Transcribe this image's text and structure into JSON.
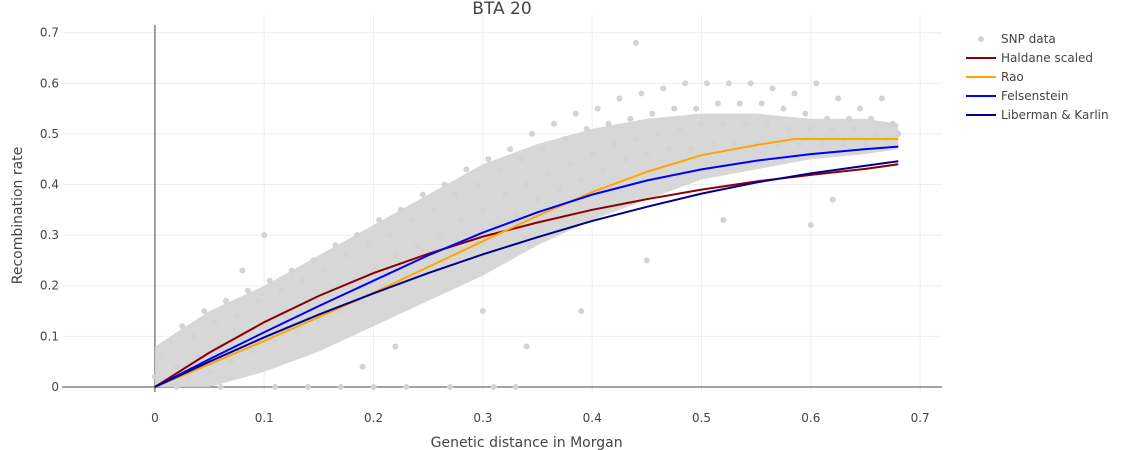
{
  "chart_data": {
    "type": "scatter",
    "title": "BTA 20",
    "xlabel": "Genetic distance in Morgan",
    "ylabel": "Recombination rate",
    "xlim": [
      -0.085,
      0.72
    ],
    "ylim": [
      -0.01,
      0.735
    ],
    "xticks": [
      0,
      0.1,
      0.2,
      0.3,
      0.4,
      0.5,
      0.6,
      0.7
    ],
    "xtick_labels": [
      "0",
      "0.1",
      "0.2",
      "0.3",
      "0.4",
      "0.5",
      "0.6",
      "0.7"
    ],
    "yticks": [
      0,
      0.1,
      0.2,
      0.3,
      0.4,
      0.5,
      0.6,
      0.7
    ],
    "ytick_labels": [
      "0",
      "0.1",
      "0.2",
      "0.3",
      "0.4",
      "0.5",
      "0.6",
      "0.7"
    ],
    "grid": true,
    "legend_position": "top-right",
    "series": [
      {
        "name": "SNP data",
        "kind": "markers",
        "color": "#d3d3d3",
        "points": [
          [
            0.0,
            0.02
          ],
          [
            0.005,
            0.06
          ],
          [
            0.01,
            0.01
          ],
          [
            0.015,
            0.09
          ],
          [
            0.02,
            0.04
          ],
          [
            0.025,
            0.12
          ],
          [
            0.03,
            0.02
          ],
          [
            0.035,
            0.1
          ],
          [
            0.04,
            0.06
          ],
          [
            0.045,
            0.15
          ],
          [
            0.05,
            0.03
          ],
          [
            0.055,
            0.13
          ],
          [
            0.06,
            0.08
          ],
          [
            0.065,
            0.17
          ],
          [
            0.07,
            0.05
          ],
          [
            0.075,
            0.14
          ],
          [
            0.08,
            0.1
          ],
          [
            0.085,
            0.19
          ],
          [
            0.09,
            0.07
          ],
          [
            0.095,
            0.17
          ],
          [
            0.1,
            0.12
          ],
          [
            0.1,
            0.3
          ],
          [
            0.105,
            0.21
          ],
          [
            0.11,
            0.09
          ],
          [
            0.115,
            0.19
          ],
          [
            0.12,
            0.14
          ],
          [
            0.125,
            0.23
          ],
          [
            0.13,
            0.11
          ],
          [
            0.135,
            0.21
          ],
          [
            0.14,
            0.16
          ],
          [
            0.145,
            0.25
          ],
          [
            0.15,
            0.13
          ],
          [
            0.155,
            0.23
          ],
          [
            0.16,
            0.18
          ],
          [
            0.165,
            0.28
          ],
          [
            0.17,
            0.15
          ],
          [
            0.175,
            0.26
          ],
          [
            0.18,
            0.21
          ],
          [
            0.185,
            0.3
          ],
          [
            0.19,
            0.17
          ],
          [
            0.195,
            0.28
          ],
          [
            0.2,
            0.23
          ],
          [
            0.205,
            0.33
          ],
          [
            0.21,
            0.2
          ],
          [
            0.215,
            0.3
          ],
          [
            0.22,
            0.26
          ],
          [
            0.225,
            0.35
          ],
          [
            0.23,
            0.22
          ],
          [
            0.235,
            0.33
          ],
          [
            0.24,
            0.28
          ],
          [
            0.245,
            0.38
          ],
          [
            0.25,
            0.24
          ],
          [
            0.255,
            0.35
          ],
          [
            0.26,
            0.3
          ],
          [
            0.265,
            0.4
          ],
          [
            0.27,
            0.27
          ],
          [
            0.275,
            0.38
          ],
          [
            0.28,
            0.33
          ],
          [
            0.285,
            0.43
          ],
          [
            0.29,
            0.29
          ],
          [
            0.295,
            0.4
          ],
          [
            0.3,
            0.35
          ],
          [
            0.305,
            0.45
          ],
          [
            0.31,
            0.32
          ],
          [
            0.315,
            0.43
          ],
          [
            0.32,
            0.38
          ],
          [
            0.325,
            0.47
          ],
          [
            0.33,
            0.34
          ],
          [
            0.335,
            0.45
          ],
          [
            0.34,
            0.4
          ],
          [
            0.345,
            0.5
          ],
          [
            0.35,
            0.37
          ],
          [
            0.355,
            0.47
          ],
          [
            0.36,
            0.42
          ],
          [
            0.365,
            0.52
          ],
          [
            0.37,
            0.39
          ],
          [
            0.375,
            0.49
          ],
          [
            0.38,
            0.44
          ],
          [
            0.385,
            0.54
          ],
          [
            0.39,
            0.41
          ],
          [
            0.395,
            0.51
          ],
          [
            0.4,
            0.46
          ],
          [
            0.405,
            0.55
          ],
          [
            0.41,
            0.43
          ],
          [
            0.415,
            0.52
          ],
          [
            0.42,
            0.48
          ],
          [
            0.425,
            0.57
          ],
          [
            0.43,
            0.45
          ],
          [
            0.435,
            0.53
          ],
          [
            0.44,
            0.49
          ],
          [
            0.44,
            0.68
          ],
          [
            0.445,
            0.58
          ],
          [
            0.45,
            0.46
          ],
          [
            0.455,
            0.54
          ],
          [
            0.46,
            0.5
          ],
          [
            0.465,
            0.59
          ],
          [
            0.47,
            0.47
          ],
          [
            0.475,
            0.55
          ],
          [
            0.48,
            0.51
          ],
          [
            0.485,
            0.6
          ],
          [
            0.49,
            0.47
          ],
          [
            0.495,
            0.55
          ],
          [
            0.5,
            0.52
          ],
          [
            0.505,
            0.6
          ],
          [
            0.51,
            0.48
          ],
          [
            0.515,
            0.56
          ],
          [
            0.52,
            0.52
          ],
          [
            0.525,
            0.6
          ],
          [
            0.53,
            0.48
          ],
          [
            0.535,
            0.56
          ],
          [
            0.54,
            0.52
          ],
          [
            0.545,
            0.6
          ],
          [
            0.55,
            0.48
          ],
          [
            0.555,
            0.56
          ],
          [
            0.56,
            0.52
          ],
          [
            0.565,
            0.59
          ],
          [
            0.57,
            0.48
          ],
          [
            0.575,
            0.55
          ],
          [
            0.58,
            0.51
          ],
          [
            0.585,
            0.58
          ],
          [
            0.59,
            0.48
          ],
          [
            0.595,
            0.54
          ],
          [
            0.6,
            0.51
          ],
          [
            0.605,
            0.6
          ],
          [
            0.61,
            0.48
          ],
          [
            0.615,
            0.53
          ],
          [
            0.62,
            0.51
          ],
          [
            0.625,
            0.57
          ],
          [
            0.63,
            0.48
          ],
          [
            0.635,
            0.53
          ],
          [
            0.64,
            0.51
          ],
          [
            0.645,
            0.55
          ],
          [
            0.65,
            0.48
          ],
          [
            0.655,
            0.53
          ],
          [
            0.66,
            0.5
          ],
          [
            0.665,
            0.57
          ],
          [
            0.67,
            0.49
          ],
          [
            0.675,
            0.52
          ],
          [
            0.68,
            0.5
          ],
          [
            0.02,
            0.0
          ],
          [
            0.06,
            0.0
          ],
          [
            0.11,
            0.0
          ],
          [
            0.14,
            0.0
          ],
          [
            0.17,
            0.0
          ],
          [
            0.2,
            0.0
          ],
          [
            0.23,
            0.0
          ],
          [
            0.27,
            0.0
          ],
          [
            0.31,
            0.0
          ],
          [
            0.33,
            0.0
          ],
          [
            0.08,
            0.23
          ],
          [
            0.19,
            0.04
          ],
          [
            0.22,
            0.08
          ],
          [
            0.3,
            0.15
          ],
          [
            0.34,
            0.08
          ],
          [
            0.39,
            0.15
          ],
          [
            0.45,
            0.25
          ],
          [
            0.52,
            0.33
          ],
          [
            0.6,
            0.32
          ],
          [
            0.62,
            0.37
          ]
        ]
      },
      {
        "name": "Haldane scaled",
        "kind": "line",
        "color": "#8b0000",
        "x": [
          0,
          0.05,
          0.1,
          0.15,
          0.2,
          0.25,
          0.3,
          0.35,
          0.4,
          0.45,
          0.5,
          0.55,
          0.6,
          0.65,
          0.68
        ],
        "y": [
          0,
          0.068,
          0.128,
          0.18,
          0.225,
          0.263,
          0.297,
          0.325,
          0.35,
          0.371,
          0.39,
          0.406,
          0.419,
          0.431,
          0.44
        ]
      },
      {
        "name": "Rao",
        "kind": "line",
        "color": "#ffa500",
        "x": [
          0,
          0.05,
          0.1,
          0.15,
          0.2,
          0.25,
          0.3,
          0.35,
          0.4,
          0.45,
          0.5,
          0.55,
          0.585,
          0.6,
          0.68
        ],
        "y": [
          0,
          0.045,
          0.091,
          0.138,
          0.186,
          0.237,
          0.288,
          0.338,
          0.385,
          0.425,
          0.458,
          0.478,
          0.49,
          0.49,
          0.49
        ]
      },
      {
        "name": "Felsenstein",
        "kind": "line",
        "color": "#0000ff",
        "x": [
          0,
          0.05,
          0.1,
          0.15,
          0.2,
          0.25,
          0.3,
          0.35,
          0.4,
          0.45,
          0.5,
          0.55,
          0.6,
          0.65,
          0.68
        ],
        "y": [
          0,
          0.055,
          0.108,
          0.16,
          0.21,
          0.26,
          0.305,
          0.345,
          0.38,
          0.408,
          0.43,
          0.447,
          0.46,
          0.47,
          0.475
        ]
      },
      {
        "name": "Liberman & Karlin",
        "kind": "line",
        "color": "#00008b",
        "x": [
          0,
          0.05,
          0.1,
          0.15,
          0.2,
          0.25,
          0.3,
          0.35,
          0.4,
          0.45,
          0.5,
          0.55,
          0.6,
          0.65,
          0.68
        ],
        "y": [
          0,
          0.05,
          0.098,
          0.143,
          0.185,
          0.225,
          0.262,
          0.296,
          0.328,
          0.356,
          0.382,
          0.404,
          0.422,
          0.437,
          0.446
        ]
      }
    ]
  }
}
